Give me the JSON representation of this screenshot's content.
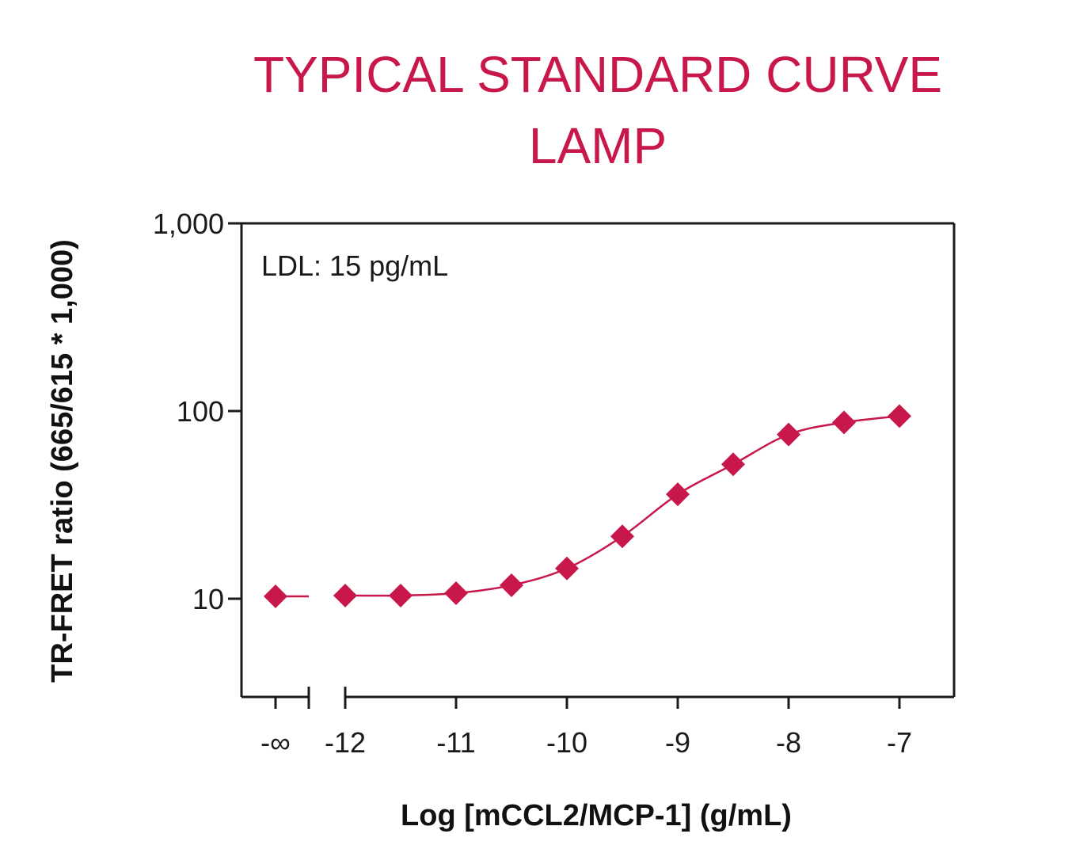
{
  "chart_data": {
    "type": "scatter",
    "title": [
      "TYPICAL STANDARD CURVE",
      "LAMP"
    ],
    "xlabel": "Log [mCCL2/MCP-1] (g/mL)",
    "ylabel": "TR-FRET ratio (665/615 * 1,000)",
    "annotation": "LDL: 15 pg/mL",
    "yscale": "log",
    "ylim": [
      3,
      1000
    ],
    "xlim": [
      -12.5,
      -7
    ],
    "y_ticks": [
      {
        "value": 10,
        "label": "10"
      },
      {
        "value": 100,
        "label": "100"
      },
      {
        "value": 1000,
        "label": "1,000"
      }
    ],
    "x_ticks": [
      {
        "value": -12,
        "label": "-12"
      },
      {
        "value": -11,
        "label": "-11"
      },
      {
        "value": -10,
        "label": "-10"
      },
      {
        "value": -9,
        "label": "-9"
      },
      {
        "value": -8,
        "label": "-8"
      },
      {
        "value": -7,
        "label": "-7"
      }
    ],
    "x_break_label": "-∞",
    "zero_point": {
      "x_label": "-∞",
      "y": 10.3
    },
    "series": [
      {
        "marker": "diamond",
        "color": "#c8174b",
        "x": [
          -12,
          -11.5,
          -11,
          -10.5,
          -10,
          -9.5,
          -9,
          -8.5,
          -8,
          -7.5,
          -7
        ],
        "y": [
          10.4,
          10.4,
          10.7,
          11.8,
          14.5,
          21.5,
          36,
          52,
          75,
          87,
          94
        ]
      }
    ]
  }
}
